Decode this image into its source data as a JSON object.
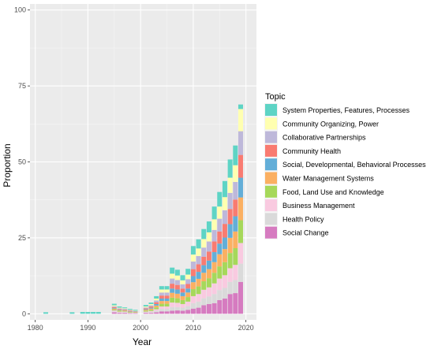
{
  "chart_data": {
    "type": "bar",
    "stacked": true,
    "xlabel": "Year",
    "ylabel": "Proportion",
    "xlim": [
      1979,
      2022
    ],
    "ylim": [
      -2,
      102
    ],
    "x_ticks": [
      1980,
      1990,
      2000,
      2010,
      2020
    ],
    "y_ticks": [
      0,
      25,
      50,
      75,
      100
    ],
    "legend": {
      "title": "Topic",
      "position": "right",
      "order": [
        "System Properties, Features, Processes",
        "Community Organizing, Power",
        "Collaborative Partnerships",
        "Community Health",
        "Social, Developmental, Behavioral Processes",
        "Water Management Systems",
        "Food, Land Use and Knowledge",
        "Business Management",
        "Health Policy",
        "Social Change"
      ]
    },
    "grid": true,
    "x": [
      1982,
      1987,
      1989,
      1990,
      1991,
      1992,
      1995,
      1996,
      1997,
      1998,
      1999,
      2001,
      2002,
      2003,
      2004,
      2005,
      2006,
      2007,
      2008,
      2009,
      2010,
      2011,
      2012,
      2013,
      2014,
      2015,
      2016,
      2017,
      2018,
      2019
    ],
    "series": [
      {
        "name": "Social Change",
        "color": "#D67BC0",
        "values": [
          0,
          0,
          0,
          0,
          0,
          0,
          0.5,
          0.3,
          0.3,
          0.2,
          0.2,
          0.3,
          0.3,
          0.5,
          0.8,
          0.8,
          1,
          1.1,
          1,
          1.3,
          1.7,
          2,
          2.8,
          3.2,
          3.5,
          4.5,
          5,
          6.5,
          6.8,
          10.5
        ]
      },
      {
        "name": "Health Policy",
        "color": "#DADADA",
        "values": [
          0,
          0,
          0,
          0,
          0,
          0,
          0.3,
          0.2,
          0.2,
          0.1,
          0.1,
          0.2,
          0.3,
          0.5,
          0.8,
          0.8,
          1.2,
          1.1,
          1,
          1.2,
          1.8,
          2,
          2.3,
          2.5,
          3,
          3.3,
          3.5,
          4,
          4.3,
          6
        ]
      },
      {
        "name": "Business Management",
        "color": "#F9CAE0",
        "values": [
          0,
          0,
          0,
          0,
          0,
          0,
          0.3,
          0.2,
          0.2,
          0.1,
          0.1,
          0.2,
          0.3,
          0.5,
          0.8,
          0.8,
          1.5,
          1.4,
          1.2,
          1.5,
          2.3,
          2.5,
          2.8,
          3,
          3.5,
          3.8,
          4.2,
          4.5,
          5,
          6.8
        ]
      },
      {
        "name": "Food, Land Use and Knowledge",
        "color": "#A6D85A",
        "values": [
          0,
          0,
          0,
          0,
          0,
          0,
          0.3,
          0.3,
          0.2,
          0.2,
          0.1,
          0.3,
          0.4,
          0.6,
          0.9,
          0.9,
          1.6,
          1.5,
          1.3,
          1.5,
          2.3,
          2.5,
          2.8,
          3,
          3.5,
          4,
          4.3,
          5,
          5.5,
          7.5
        ]
      },
      {
        "name": "Water Management Systems",
        "color": "#FBB062",
        "values": [
          0,
          0,
          0,
          0,
          0,
          0,
          0.3,
          0.2,
          0.2,
          0.1,
          0.1,
          0.3,
          0.4,
          0.6,
          0.9,
          0.9,
          1.6,
          1.5,
          1.3,
          1.5,
          2.3,
          2.5,
          2.8,
          3,
          3.5,
          4,
          4.3,
          5,
          5.5,
          7.5
        ]
      },
      {
        "name": "Social, Developmental, Behavioral Processes",
        "color": "#63AED8",
        "values": [
          0,
          0,
          0,
          0,
          0,
          0,
          0.2,
          0.2,
          0.1,
          0.1,
          0.1,
          0.2,
          0.3,
          0.5,
          0.8,
          0.8,
          1.4,
          1.4,
          1.2,
          1.3,
          2,
          2.3,
          2.5,
          2.8,
          3.3,
          3.5,
          3.8,
          4.5,
          5,
          6.5
        ]
      },
      {
        "name": "Community Health",
        "color": "#F97B71",
        "values": [
          0,
          0,
          0,
          0,
          0,
          0,
          0.3,
          0.2,
          0.2,
          0.2,
          0.1,
          0.3,
          0.4,
          0.6,
          1,
          1,
          1.6,
          1.5,
          1.3,
          1.5,
          2.3,
          2.5,
          2.8,
          3,
          3.5,
          4,
          4.5,
          5,
          5.5,
          7.5
        ]
      },
      {
        "name": "Collaborative Partnerships",
        "color": "#BEB8DA",
        "values": [
          0,
          0,
          0,
          0,
          0,
          0,
          0.3,
          0.2,
          0.2,
          0.2,
          0.1,
          0.3,
          0.4,
          0.6,
          1,
          1,
          1.7,
          1.6,
          1.4,
          1.6,
          2.5,
          2.7,
          3,
          3.3,
          3.8,
          4.2,
          4.5,
          5.3,
          5.8,
          7.8
        ]
      },
      {
        "name": "Community Organizing, Power",
        "color": "#FFFFB0",
        "values": [
          0,
          0,
          0,
          0,
          0,
          0,
          0.3,
          0.2,
          0.2,
          0.1,
          0.1,
          0.3,
          0.4,
          0.6,
          1,
          1,
          1.6,
          1.5,
          1.3,
          1.5,
          2.3,
          2.5,
          2.8,
          3,
          3.5,
          4,
          4.3,
          5,
          5.5,
          7.3
        ]
      },
      {
        "name": "System Properties, Features, Processes",
        "color": "#5ED4C5",
        "values": [
          0.5,
          0.5,
          0.6,
          0.6,
          0.6,
          0.6,
          0.5,
          0.4,
          0.3,
          0.3,
          0.3,
          0.5,
          0.5,
          0.8,
          1.1,
          1.1,
          2,
          1.9,
          1.7,
          1.9,
          2.8,
          3,
          3.3,
          3.6,
          4.2,
          4.8,
          5.3,
          6,
          6.5,
          1.5
        ]
      }
    ]
  }
}
